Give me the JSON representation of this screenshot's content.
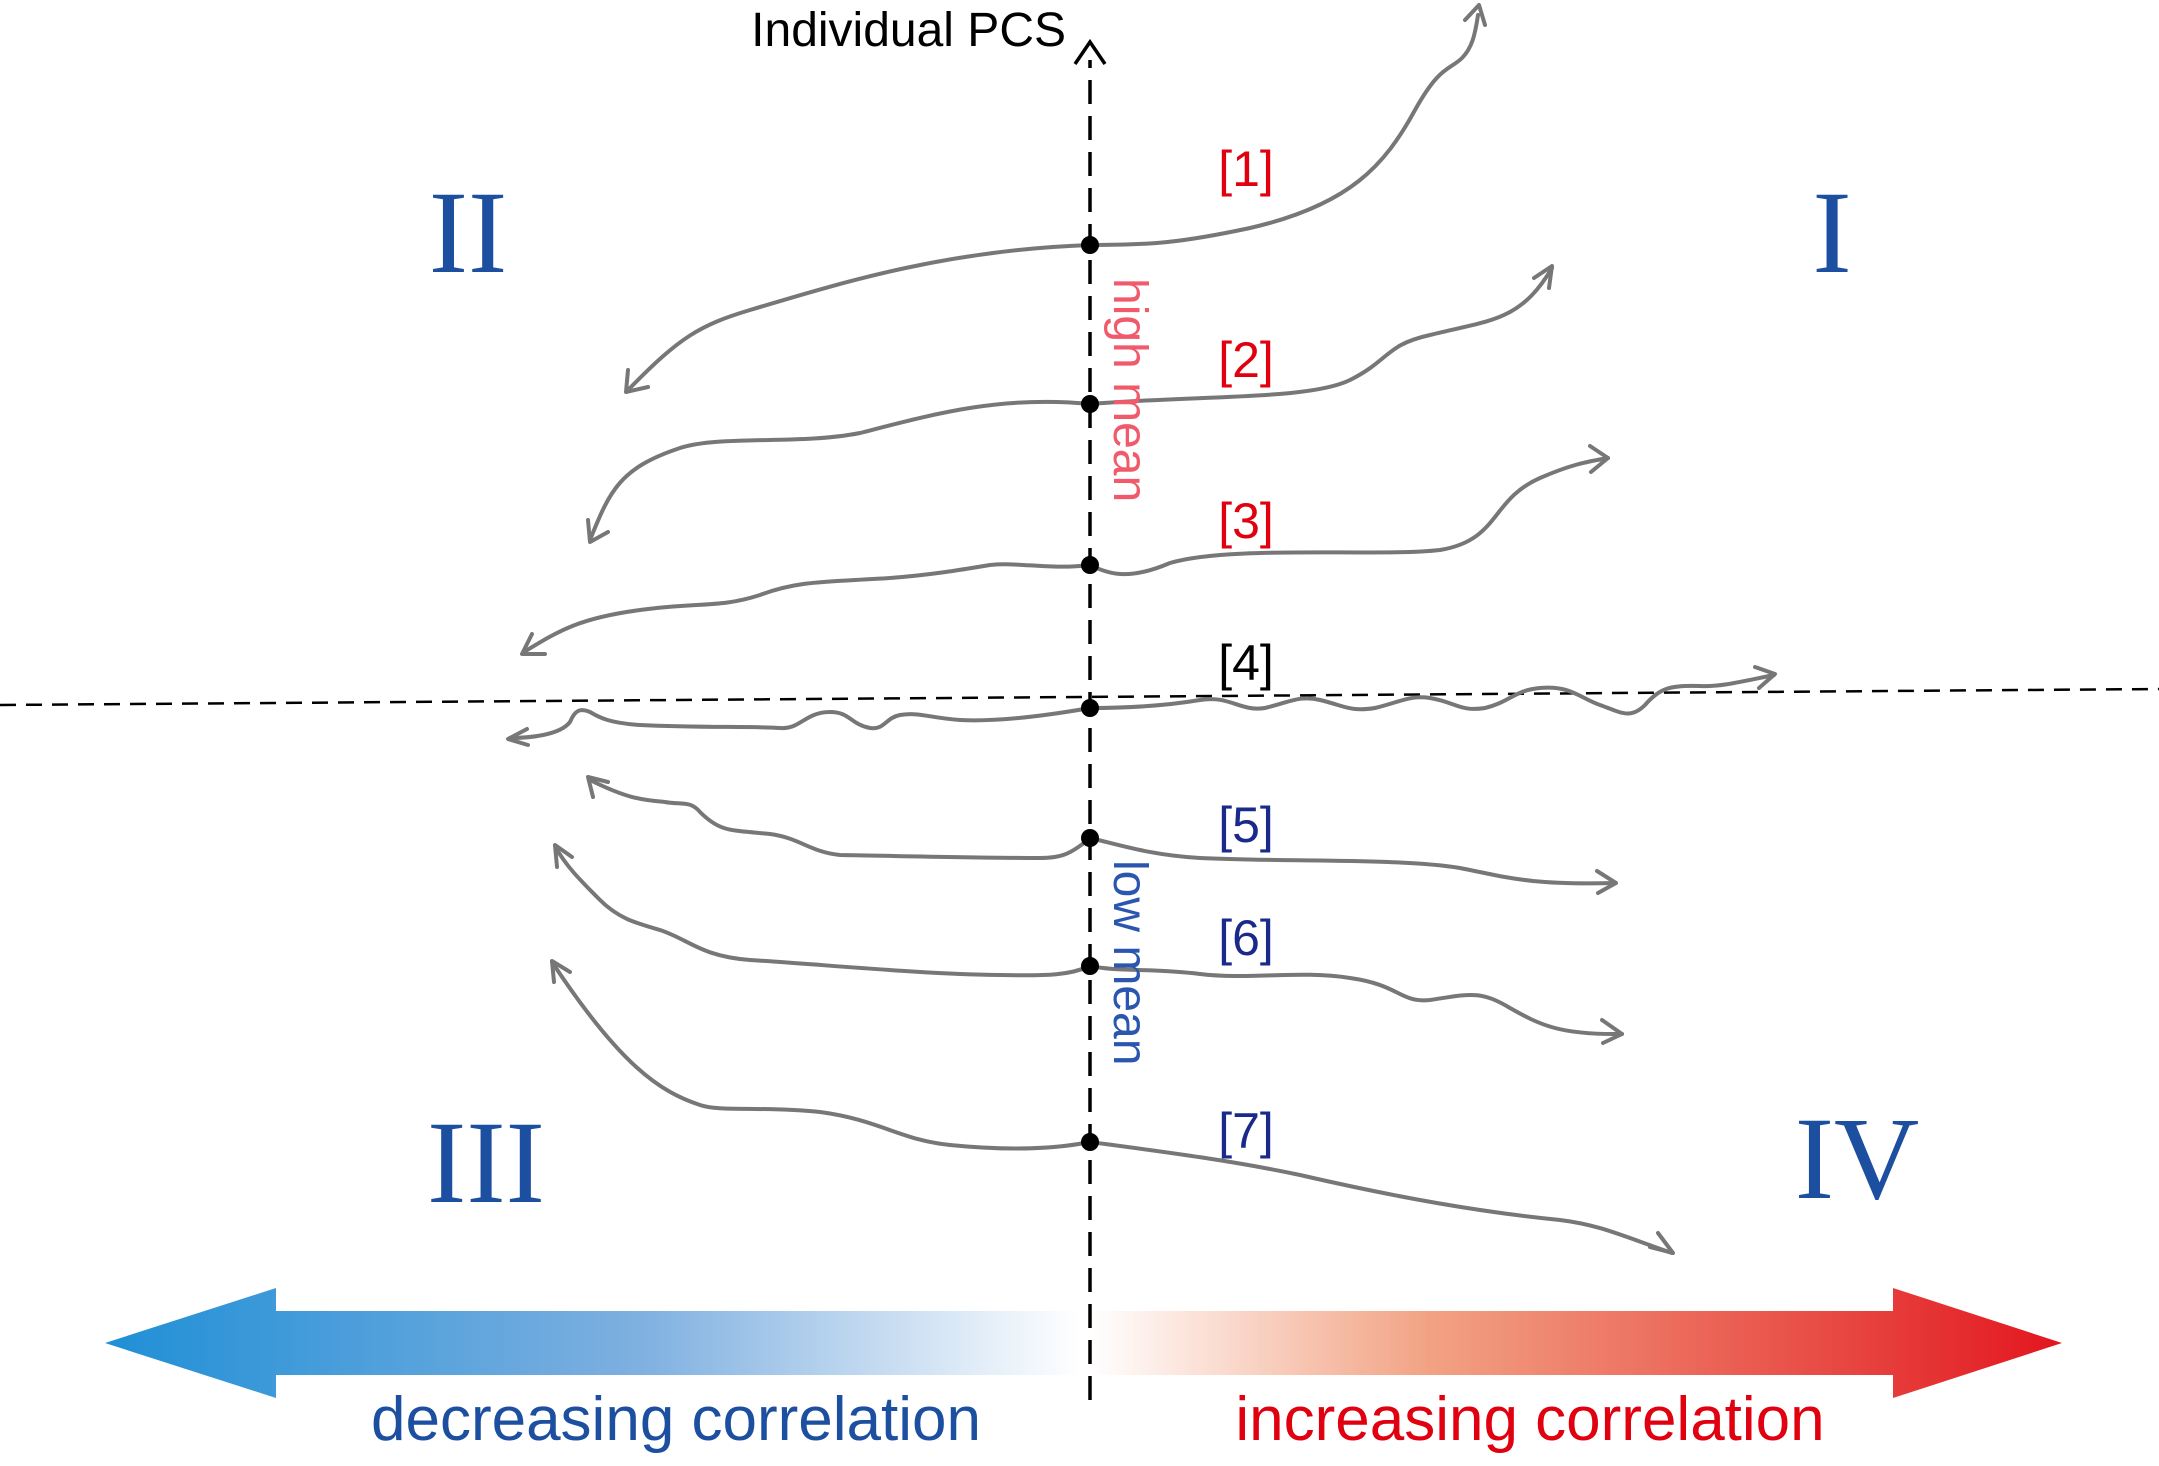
{
  "diagram": {
    "y_axis_label": "Individual PCS",
    "quadrants": {
      "q1": "I",
      "q2": "II",
      "q3": "III",
      "q4": "IV"
    },
    "high_mean_label": "high mean",
    "low_mean_label": "low mean",
    "decreasing_label": "decreasing correlation",
    "increasing_label": "increasing correlation",
    "series_labels": [
      "[1]",
      "[2]",
      "[3]",
      "[4]",
      "[5]",
      "[6]",
      "[7]"
    ],
    "colors": {
      "quadrant": "#1d4fa0",
      "high": "#e0000f",
      "high_mean": "#f05a6a",
      "low": "#1a2a8a",
      "low_mean": "#2b56b0",
      "neutral": "#000000",
      "curve": "#777777",
      "blue_arrow": "#2a96d8",
      "red_arrow": "#e2161f"
    }
  }
}
